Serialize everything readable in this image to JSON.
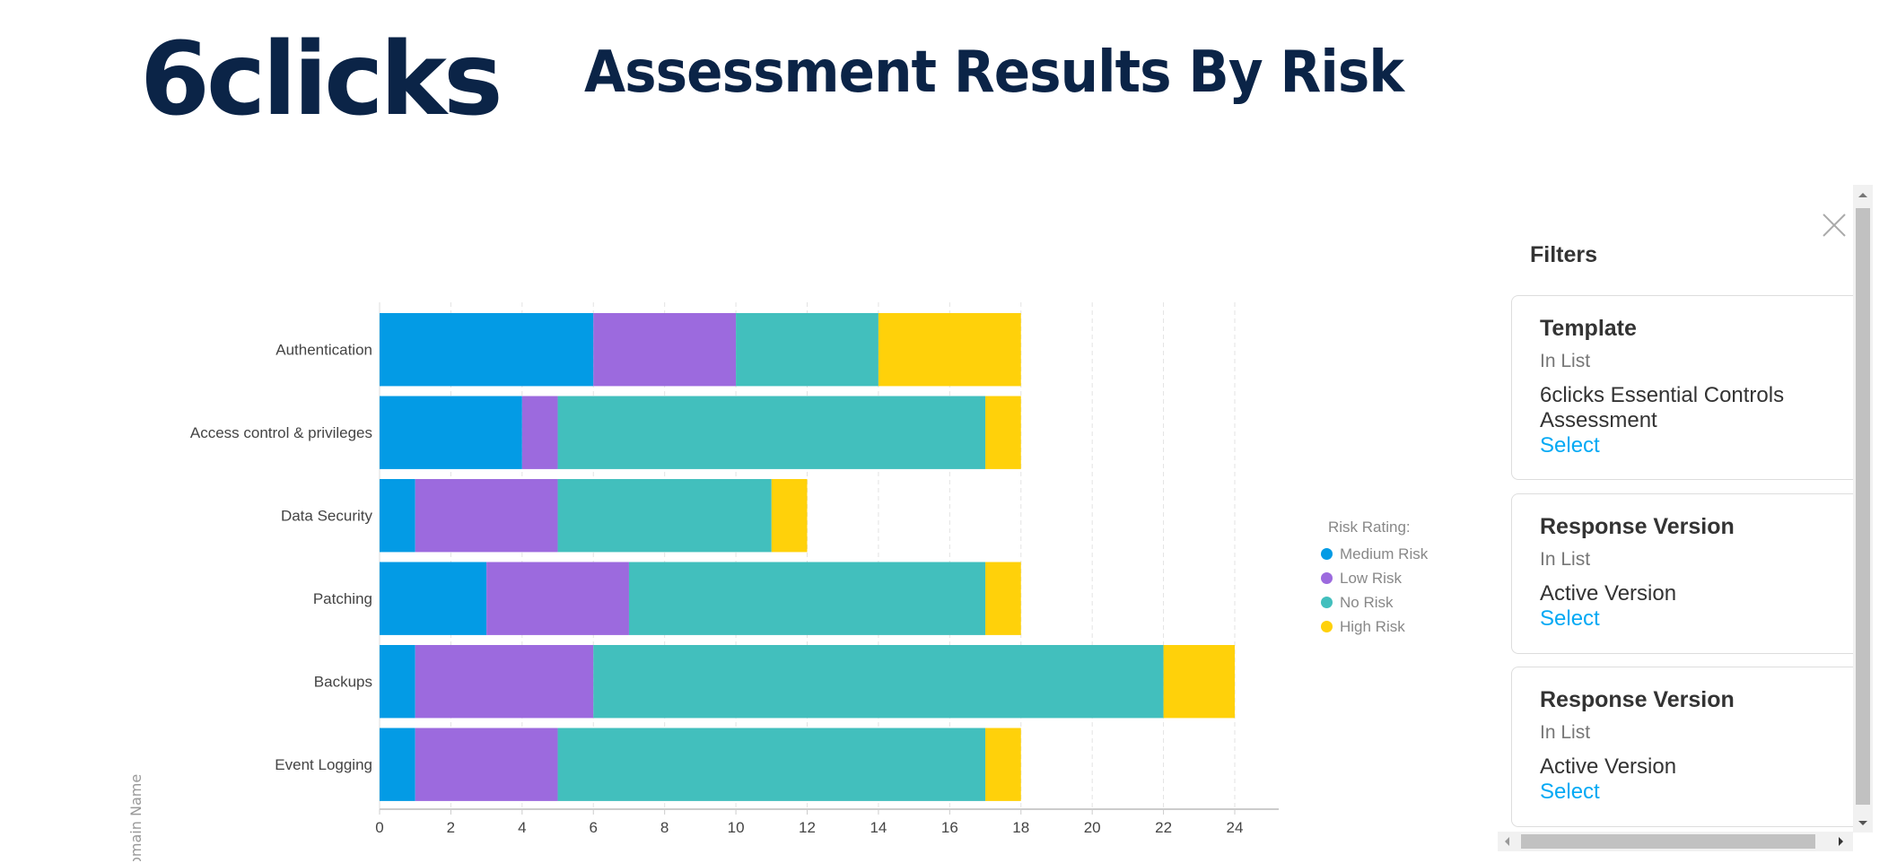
{
  "header": {
    "logo_text": "6clicks",
    "title": "Assessment Results By Risk"
  },
  "chart_data": {
    "type": "bar",
    "orientation": "horizontal",
    "stacked": true,
    "ylabel": "Domain Name",
    "xlabel": "",
    "categories": [
      "Authentication",
      "Access control & privileges",
      "Data Security",
      "Patching",
      "Backups",
      "Event Logging"
    ],
    "series": [
      {
        "name": "Medium Risk",
        "color": "#039be5",
        "values": [
          6,
          4,
          1,
          3,
          1,
          1
        ]
      },
      {
        "name": "Low Risk",
        "color": "#9c6ade",
        "values": [
          4,
          1,
          4,
          4,
          5,
          4
        ]
      },
      {
        "name": "No Risk",
        "color": "#42bfbd",
        "values": [
          4,
          12,
          6,
          10,
          16,
          12
        ]
      },
      {
        "name": "High Risk",
        "color": "#ffd10a",
        "values": [
          4,
          1,
          1,
          1,
          2,
          1
        ]
      }
    ],
    "xlim": [
      0,
      25
    ],
    "xticks": [
      0,
      2,
      4,
      6,
      8,
      10,
      12,
      14,
      16,
      18,
      20,
      22,
      24
    ],
    "grid": true,
    "legend_title": "Risk Rating:",
    "legend_position": "right"
  },
  "filters": {
    "title": "Filters",
    "cards": [
      {
        "heading": "Template",
        "operator": "In List",
        "value": "6clicks Essential Controls Assessment",
        "action": "Select"
      },
      {
        "heading": "Response Version",
        "operator": "In List",
        "value": "Active Version",
        "action": "Select"
      },
      {
        "heading": "Response Version",
        "operator": "In List",
        "value": "Active Version",
        "action": "Select"
      }
    ]
  },
  "colors": {
    "brand": "#0b2447",
    "link": "#03a9f4"
  }
}
